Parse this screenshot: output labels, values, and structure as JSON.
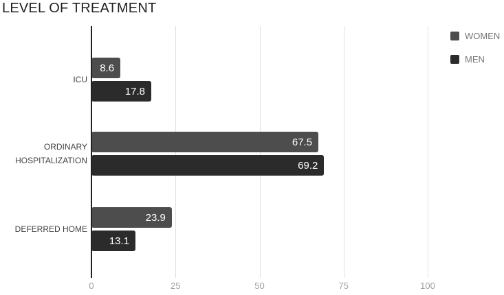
{
  "chart_data": {
    "type": "bar",
    "orientation": "horizontal",
    "title": "LEVEL OF TREATMENT",
    "categories": [
      "ICU",
      "ORDINARY HOSPITALIZATION",
      "DEFERRED HOME"
    ],
    "series": [
      {
        "name": "WOMEN",
        "color": "#4d4d4d",
        "values": [
          8.6,
          67.5,
          23.9
        ]
      },
      {
        "name": "MEN",
        "color": "#2b2b2b",
        "values": [
          17.8,
          69.2,
          13.1
        ]
      }
    ],
    "x_axis": {
      "min": 0,
      "max": 100,
      "ticks": [
        0,
        25,
        50,
        75,
        100
      ]
    },
    "grid": true,
    "legend_position": "top-right",
    "colors": {
      "gridline": "#e0e0e0",
      "axis_line": "#212121",
      "value_label": "#ffffff",
      "tick_label": "#9e9e9e",
      "category_label": "#424242",
      "legend_label": "#757575",
      "title": "#212121",
      "background": "#ffffff"
    }
  }
}
